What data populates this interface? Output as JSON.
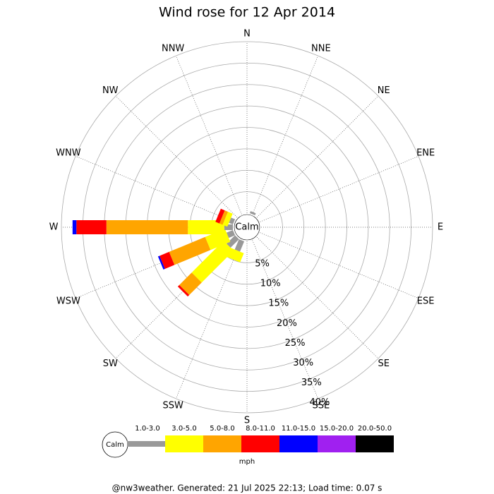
{
  "chart_data": {
    "type": "wind_rose",
    "title": "Wind rose for 12 Apr 2014",
    "directions": [
      "N",
      "NNE",
      "NE",
      "ENE",
      "E",
      "ESE",
      "SE",
      "SSE",
      "S",
      "SSW",
      "SW",
      "WSW",
      "W",
      "WNW",
      "NW",
      "NNW"
    ],
    "series": [
      {
        "name": "1.0-3.0",
        "color": "#999999",
        "values": [
          0,
          0.5,
          0,
          0,
          0,
          0,
          0,
          0,
          0,
          2.6,
          2.8,
          1.6,
          2.0,
          1.0,
          0,
          0
        ]
      },
      {
        "name": "3.0-5.0",
        "color": "#ffff00",
        "values": [
          0,
          0,
          0,
          0,
          0,
          0,
          0,
          0,
          0,
          2.3,
          10.5,
          5.0,
          8.5,
          1.2,
          0,
          0
        ]
      },
      {
        "name": "5.0-8.0",
        "color": "#ffa500",
        "values": [
          0,
          0,
          0,
          0,
          0,
          0,
          0,
          0,
          0,
          0,
          4.1,
          9.1,
          19.0,
          0.8,
          0,
          0
        ]
      },
      {
        "name": "8.0-11.0",
        "color": "#ff0000",
        "values": [
          0,
          0,
          0,
          0,
          0,
          0,
          0,
          0,
          0,
          0,
          0.5,
          2.4,
          7.0,
          1.0,
          0,
          0
        ]
      },
      {
        "name": "11.0-15.0",
        "color": "#0000ff",
        "values": [
          0,
          0,
          0,
          0,
          0,
          0,
          0,
          0,
          0,
          0,
          0,
          0.4,
          0.9,
          0,
          0,
          0
        ]
      },
      {
        "name": "15.0-20.0",
        "color": "#a020f0",
        "values": [
          0,
          0,
          0,
          0,
          0,
          0,
          0,
          0,
          0,
          0,
          0,
          0,
          0,
          0,
          0,
          0
        ]
      },
      {
        "name": "20.0-50.0",
        "color": "#000000",
        "values": [
          0,
          0,
          0,
          0,
          0,
          0,
          0,
          0,
          0,
          0,
          0,
          0,
          0,
          0,
          0,
          0
        ]
      }
    ],
    "rlim": [
      0,
      40
    ],
    "rticks": [
      {
        "value": 5,
        "label": "5%"
      },
      {
        "value": 10,
        "label": "10%"
      },
      {
        "value": 15,
        "label": "15%"
      },
      {
        "value": 20,
        "label": "20%"
      },
      {
        "value": 25,
        "label": "25%"
      },
      {
        "value": 30,
        "label": "30%"
      },
      {
        "value": 35,
        "label": "35%"
      },
      {
        "value": 40,
        "label": "40%"
      }
    ],
    "calm_label": "Calm",
    "unit": "mph",
    "footer": "@nw3weather. Generated: 21 Jul 2025 22:13; Load time: 0.07 s"
  }
}
